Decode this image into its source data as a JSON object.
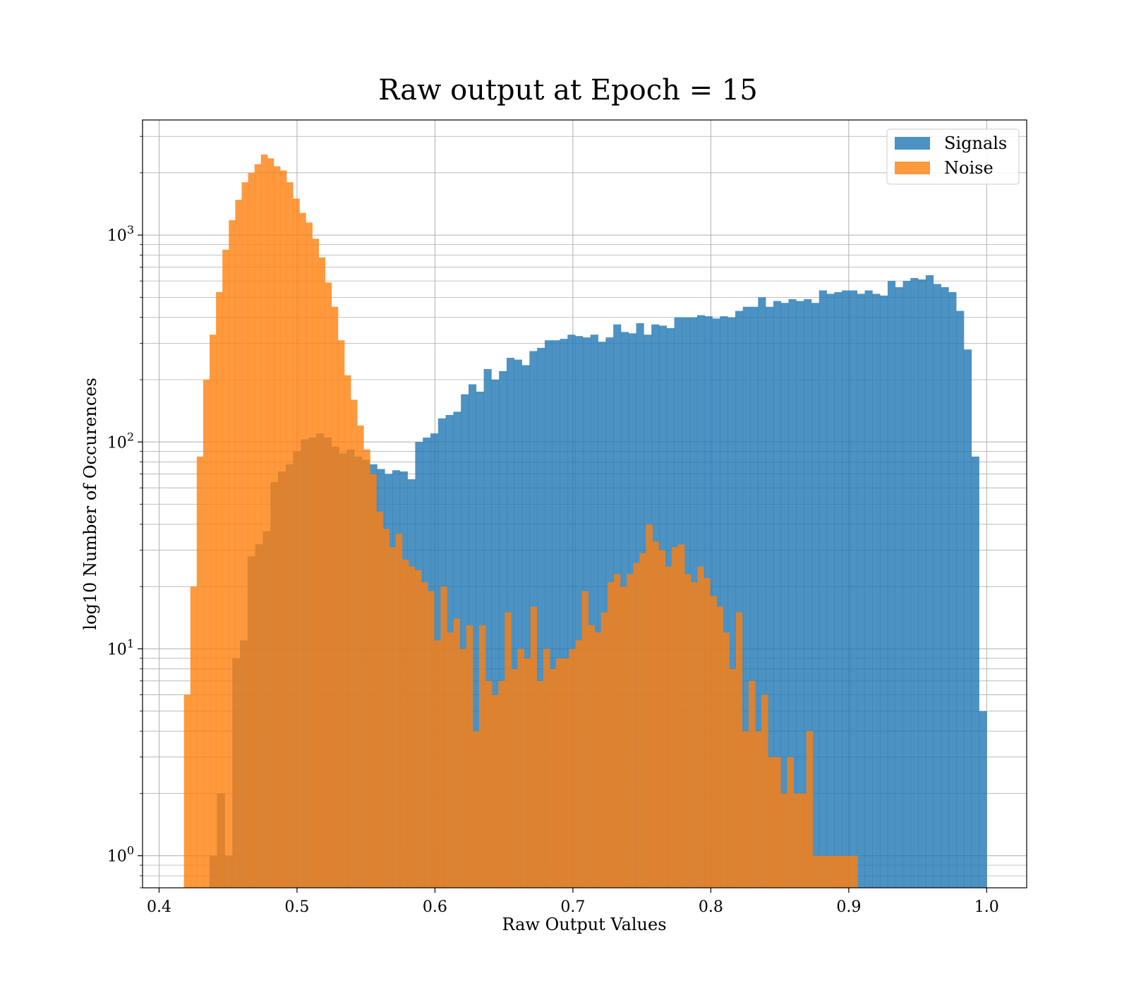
{
  "chart_data": {
    "type": "bar",
    "subtype": "histogram",
    "title": "Raw output at Epoch = 15",
    "xlabel": "Raw Output Values",
    "ylabel": "log10 Number of Occurences",
    "yscale": "log",
    "xlim": [
      0.388,
      1.029
    ],
    "ylim": [
      0.7,
      3600
    ],
    "xticks": [
      0.4,
      0.5,
      0.6,
      0.7,
      0.8,
      0.9,
      1.0
    ],
    "xtick_labels": [
      "0.4",
      "0.5",
      "0.6",
      "0.7",
      "0.8",
      "0.9",
      "1.0"
    ],
    "yticks": [
      {
        "value": 1,
        "base": "10",
        "exp": "0"
      },
      {
        "value": 10,
        "base": "10",
        "exp": "1"
      },
      {
        "value": 100,
        "base": "10",
        "exp": "2"
      },
      {
        "value": 1000,
        "base": "10",
        "exp": "3"
      }
    ],
    "grid": true,
    "legend_position": "top-right",
    "series": [
      {
        "name": "Signals",
        "color": "#1f77b4",
        "opacity": 0.8,
        "x_start": 0.4365,
        "x_end": 1.0,
        "values": [
          1,
          2,
          1,
          9,
          11,
          28,
          32,
          37,
          64,
          72,
          78,
          90,
          103,
          105,
          110,
          105,
          95,
          88,
          92,
          85,
          82,
          78,
          74,
          70,
          73,
          72,
          66,
          100,
          105,
          110,
          130,
          135,
          140,
          170,
          190,
          175,
          225,
          200,
          220,
          255,
          250,
          235,
          275,
          285,
          310,
          310,
          315,
          330,
          325,
          320,
          330,
          305,
          320,
          370,
          340,
          335,
          375,
          330,
          370,
          365,
          355,
          400,
          400,
          400,
          410,
          405,
          395,
          405,
          400,
          430,
          450,
          450,
          500,
          450,
          480,
          470,
          490,
          480,
          490,
          470,
          540,
          520,
          530,
          540,
          540,
          520,
          540,
          520,
          510,
          600,
          560,
          600,
          620,
          610,
          640,
          580,
          560,
          530,
          430,
          280,
          85,
          5
        ]
      },
      {
        "name": "Noise",
        "color": "#ff7f0e",
        "opacity": 0.8,
        "x_start": 0.418,
        "x_end": 0.9065,
        "values": [
          6,
          20,
          85,
          200,
          330,
          530,
          850,
          1180,
          1480,
          1800,
          2000,
          2200,
          2450,
          2350,
          2150,
          2050,
          1800,
          1500,
          1280,
          1150,
          960,
          780,
          590,
          450,
          310,
          210,
          160,
          120,
          92,
          70,
          46,
          38,
          31,
          36,
          27,
          25,
          24,
          21,
          19,
          11,
          20,
          12,
          14,
          10,
          13,
          4,
          13,
          7,
          6,
          7,
          15,
          8,
          10,
          9,
          16,
          7,
          10,
          8,
          9,
          9,
          10,
          11,
          19,
          13,
          12,
          15,
          21,
          23,
          20,
          23,
          26,
          29,
          40,
          33,
          30,
          25,
          31,
          32,
          23,
          21,
          25,
          22,
          18,
          16,
          12,
          8,
          15,
          4,
          7,
          4,
          6,
          3,
          3,
          2,
          3,
          2,
          2,
          4,
          1,
          1,
          1,
          1,
          1,
          1,
          1
        ]
      }
    ]
  }
}
